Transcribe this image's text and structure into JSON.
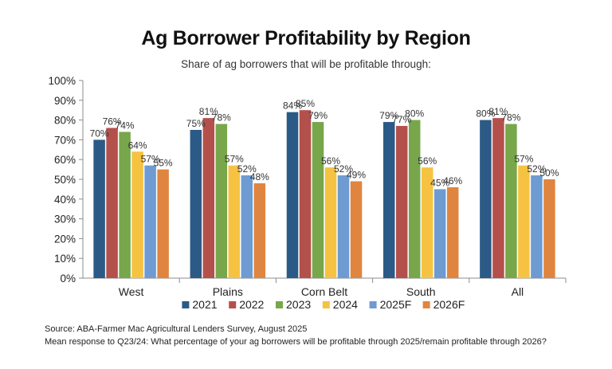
{
  "chart_data": {
    "type": "bar",
    "title": "Ag Borrower Profitability by Region",
    "subtitle": "Share of ag borrowers that will be profitable through:",
    "categories": [
      "West",
      "Plains",
      "Corn Belt",
      "South",
      "All"
    ],
    "series": [
      {
        "name": "2021",
        "color": "#2b5a86",
        "values": [
          70,
          75,
          84,
          79,
          80
        ],
        "labels": [
          "70%",
          "75%",
          "84%",
          "79%",
          "80%"
        ]
      },
      {
        "name": "2022",
        "color": "#b4504b",
        "values": [
          76,
          81,
          85,
          77,
          81
        ],
        "labels": [
          "76%",
          "81%",
          "85%",
          "77%",
          "81%"
        ]
      },
      {
        "name": "2023",
        "color": "#78a64b",
        "values": [
          74,
          78,
          79,
          80,
          78
        ],
        "labels": [
          "74%",
          "78%",
          "79%",
          "80%",
          "78%"
        ]
      },
      {
        "name": "2024",
        "color": "#f5c242",
        "values": [
          64,
          57,
          56,
          56,
          57
        ],
        "labels": [
          "64%",
          "57%",
          "56%",
          "56%",
          "57%"
        ]
      },
      {
        "name": "2025F",
        "color": "#6e9bd1",
        "values": [
          57,
          52,
          52,
          45,
          52
        ],
        "labels": [
          "57%",
          "52%",
          "52%",
          "45%",
          "52%"
        ]
      },
      {
        "name": "2026F",
        "color": "#e0853f",
        "values": [
          55,
          48,
          49,
          46,
          50
        ],
        "labels": [
          "55%",
          "48%",
          "49%",
          "46%",
          "50%"
        ]
      }
    ],
    "ylim": [
      0,
      100
    ],
    "yticks": [
      "0%",
      "10%",
      "20%",
      "30%",
      "40%",
      "50%",
      "60%",
      "70%",
      "80%",
      "90%",
      "100%"
    ],
    "grid": false,
    "legend": "bottom"
  },
  "notes": {
    "source": "Source: ABA-Farmer Mac Agricultural Lenders Survey, August 2025",
    "question": "Mean response to Q23/24: What percentage of your ag borrowers will be profitable through 2025/remain profitable through 2026?"
  }
}
